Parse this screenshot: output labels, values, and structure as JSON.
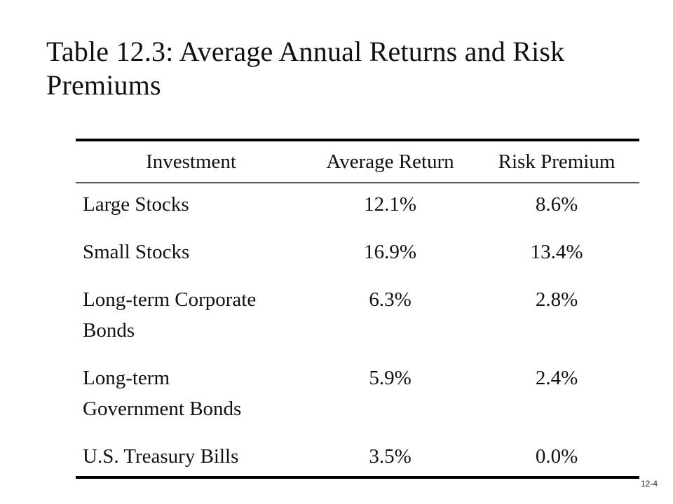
{
  "slide": {
    "title": "Table 12.3: Average Annual Returns and Risk Premiums",
    "slide_number": "12-4"
  },
  "table": {
    "headers": [
      "Investment",
      "Average Return",
      "Risk Premium"
    ],
    "rows": [
      {
        "investment": "Large Stocks",
        "average_return": "12.1%",
        "risk_premium": "8.6%"
      },
      {
        "investment": "Small Stocks",
        "average_return": "16.9%",
        "risk_premium": "13.4%"
      },
      {
        "investment": "Long-term Corporate Bonds",
        "average_return": "6.3%",
        "risk_premium": "2.8%"
      },
      {
        "investment": "Long-term Government Bonds",
        "average_return": "5.9%",
        "risk_premium": "2.4%"
      },
      {
        "investment": "U.S. Treasury Bills",
        "average_return": "3.5%",
        "risk_premium": "0.0%"
      }
    ]
  }
}
